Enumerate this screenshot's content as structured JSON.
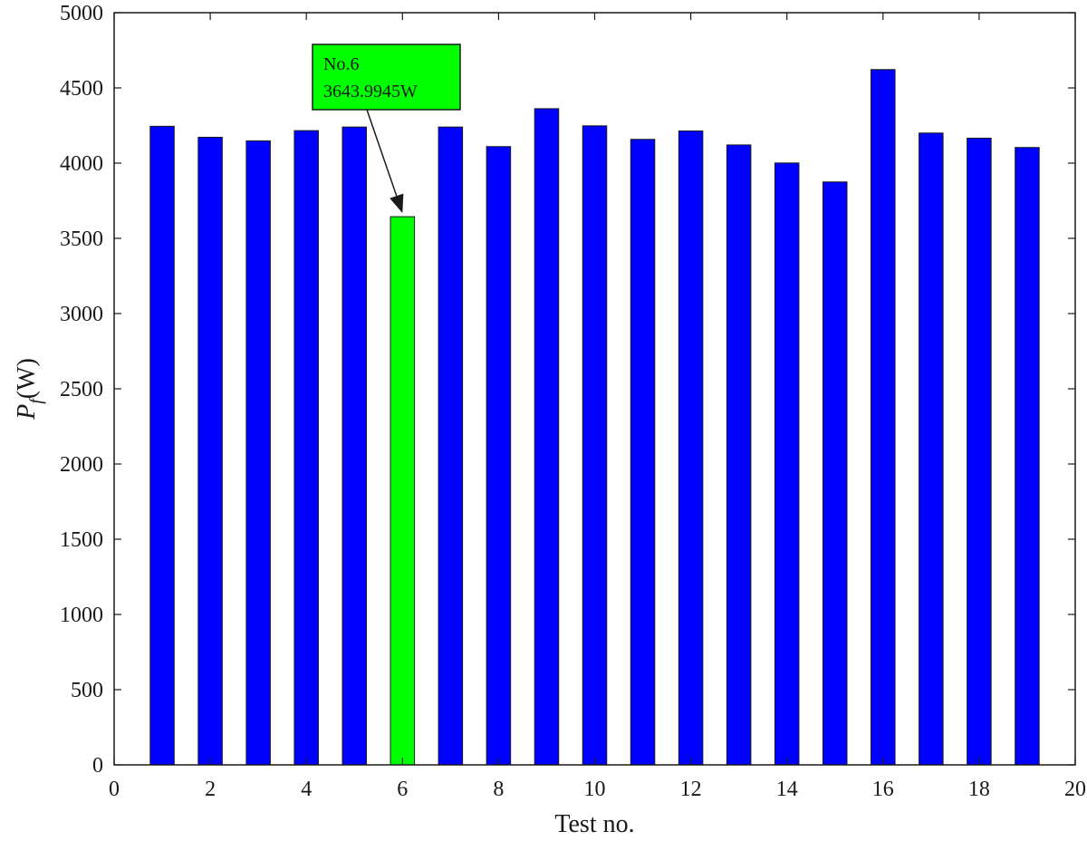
{
  "chart_data": {
    "type": "bar",
    "title": "",
    "xlabel": "Test no.",
    "ylabel_main": "P",
    "ylabel_sub": "f",
    "ylabel_unit": "(W)",
    "x": [
      1,
      2,
      3,
      4,
      5,
      6,
      7,
      8,
      9,
      10,
      11,
      12,
      13,
      14,
      15,
      16,
      17,
      18,
      19
    ],
    "values": [
      4245,
      4172,
      4148,
      4216,
      4240,
      3643.9945,
      4240,
      4110,
      4362,
      4248,
      4158,
      4214,
      4121,
      4001,
      3875,
      4622,
      4200,
      4166,
      4104
    ],
    "bar_colors": [
      "#0000ff",
      "#0000ff",
      "#0000ff",
      "#0000ff",
      "#0000ff",
      "#00ff00",
      "#0000ff",
      "#0000ff",
      "#0000ff",
      "#0000ff",
      "#0000ff",
      "#0000ff",
      "#0000ff",
      "#0000ff",
      "#0000ff",
      "#0000ff",
      "#0000ff",
      "#0000ff",
      "#0000ff"
    ],
    "xlim": [
      0,
      20
    ],
    "ylim": [
      0,
      5000
    ],
    "xticks": [
      0,
      2,
      4,
      6,
      8,
      10,
      12,
      14,
      16,
      18,
      20
    ],
    "yticks": [
      0,
      500,
      1000,
      1500,
      2000,
      2500,
      3000,
      3500,
      4000,
      4500,
      5000
    ],
    "grid": false,
    "legend": "none",
    "annotation": {
      "target_x": 6,
      "target_y": 3643.9945,
      "line1": "No.6",
      "line2": "3643.9945W",
      "box_color": "#00ff00"
    }
  }
}
